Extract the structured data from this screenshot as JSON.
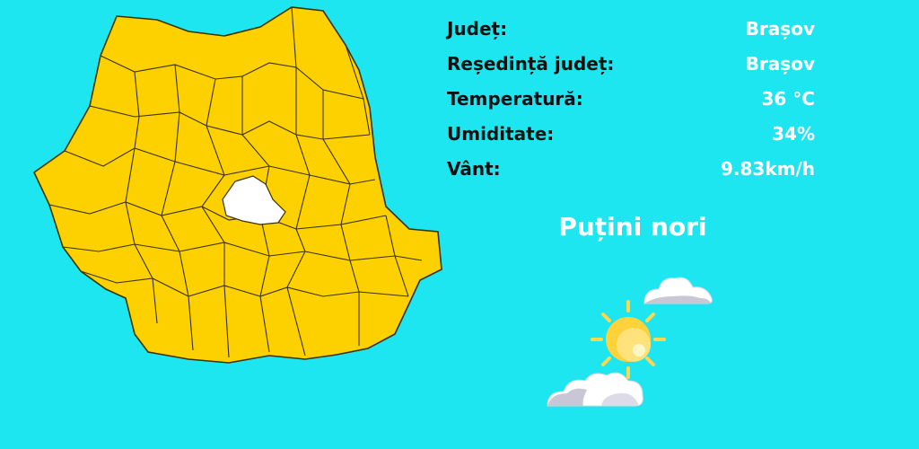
{
  "colors": {
    "background": "#1ee6f0",
    "county_fill": "#fdd000",
    "county_border": "#3a3200",
    "selected_county_fill": "#ffffff",
    "label_text": "#111111",
    "value_text": "#ffffff"
  },
  "map": {
    "selected_county": "Brașov"
  },
  "info": {
    "county_label": "Județ:",
    "county_value": "Brașov",
    "seat_label": "Reședință județ:",
    "seat_value": "Brașov",
    "temperature_label": "Temperatură:",
    "temperature_value": "36 °C",
    "humidity_label": "Umiditate:",
    "humidity_value": "34%",
    "wind_label": "Vânt:",
    "wind_value": "9.83km/h"
  },
  "weather": {
    "description": "Puțini nori",
    "icon": "sun-with-clouds-icon"
  }
}
